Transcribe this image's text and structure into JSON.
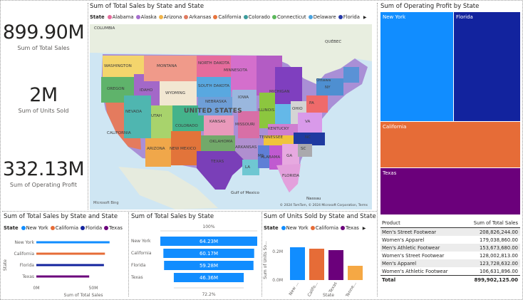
{
  "kpis": {
    "total_sales": {
      "value": "899.90M",
      "label": "Sum of Total Sales"
    },
    "units_sold": {
      "value": "2M",
      "label": "Sum of Units Sold"
    },
    "operating_profit": {
      "value": "332.13M",
      "label": "Sum of Operating Profit"
    }
  },
  "map_visual": {
    "title": "Sum of Total Sales by State and State",
    "legend_title": "State",
    "legend": [
      {
        "name": "Alabama",
        "color": "#e66c9c"
      },
      {
        "name": "Alaska",
        "color": "#a66fcf"
      },
      {
        "name": "Arizona",
        "color": "#f0b44a"
      },
      {
        "name": "Arkansas",
        "color": "#e07a5f"
      },
      {
        "name": "California",
        "color": "#e7743d"
      },
      {
        "name": "Colorado",
        "color": "#3b9b9b"
      },
      {
        "name": "Connecticut",
        "color": "#5cb85c"
      },
      {
        "name": "Delaware",
        "color": "#4aa3df"
      },
      {
        "name": "Florida",
        "color": "#2639a8"
      }
    ],
    "country_label": "UNITED STATES",
    "state_labels": [
      "WASHINGTON",
      "MONTANA",
      "NORTH DAKOTA",
      "MINNESOTA",
      "OREGON",
      "IDAHO",
      "SOUTH DAKOTA",
      "WYOMING",
      "IOWA",
      "MICHIGAN",
      "NEVADA",
      "NEBRASKA",
      "ILLINOIS",
      "OHIO",
      "PA",
      "NY",
      "UTAH",
      "COLORADO",
      "KANSAS",
      "MISSOURI",
      "KENTUCKY",
      "VA",
      "CALIFORNIA",
      "OKLAHOMA",
      "TENNESSEE",
      "NC",
      "ARIZONA",
      "NEW MEXICO",
      "ARKANSAS",
      "SC",
      "MS",
      "ALABAMA",
      "GA",
      "TEXAS",
      "LA",
      "FLORIDA",
      "COLUMBIA",
      "QUÉBEC",
      "Ottawa",
      "Gulf of Mexico",
      "Nassau"
    ],
    "attribution": "Microsoft Bing",
    "copyright": "© 2024 TomTom, © 2024 Microsoft Corporation, Terms"
  },
  "treemap": {
    "title": "Sum of Operating Profit by State",
    "cells": [
      {
        "name": "New York",
        "color": "#118dff"
      },
      {
        "name": "Florida",
        "color": "#12239e"
      },
      {
        "name": "California",
        "color": "#e66c37"
      },
      {
        "name": "Texas",
        "color": "#6b007b"
      }
    ]
  },
  "line_chart": {
    "title": "Sum of Total Sales by State and State",
    "legend_title": "State",
    "legend": [
      {
        "name": "New York",
        "color": "#118dff"
      },
      {
        "name": "California",
        "color": "#e66c37"
      },
      {
        "name": "Florida",
        "color": "#12239e"
      },
      {
        "name": "Texas",
        "color": "#6b007b"
      }
    ],
    "y_axis_title": "State",
    "x_axis_title": "Sum of Total Sales",
    "x_ticks": [
      "0M",
      "50M"
    ]
  },
  "funnel": {
    "title": "Sum of Total Sales by State",
    "top_label": "100%",
    "bottom_label": "72.2%"
  },
  "column_chart": {
    "title": "Sum of Units Sold by State and State",
    "legend_title": "State",
    "legend": [
      {
        "name": "New York",
        "color": "#118dff"
      },
      {
        "name": "California",
        "color": "#e66c37"
      },
      {
        "name": "Texas",
        "color": "#6b007b"
      }
    ],
    "y_axis_title": "Sum of Units So...",
    "x_axis_title": "State",
    "y_ticks": [
      "0.0M",
      "0.2M"
    ]
  },
  "table": {
    "col_product": "Product",
    "col_sales": "Sum of Total Sales",
    "rows": [
      {
        "product": "Men's Street Footwear",
        "sales": "208,826,244.00"
      },
      {
        "product": "Women's Apparel",
        "sales": "179,038,860.00"
      },
      {
        "product": "Men's Athletic Footwear",
        "sales": "153,673,680.00"
      },
      {
        "product": "Women's Street Footwear",
        "sales": "128,002,813.00"
      },
      {
        "product": "Men's Apparel",
        "sales": "123,728,632.00"
      },
      {
        "product": "Women's Athletic Footwear",
        "sales": "106,631,896.00"
      }
    ],
    "total_label": "Total",
    "total_value": "899,902,125.00"
  },
  "chart_data": [
    {
      "type": "treemap",
      "title": "Sum of Operating Profit by State",
      "categories": [
        "New York",
        "Florida",
        "California",
        "Texas"
      ],
      "values": [
        0.32,
        0.28,
        0.22,
        0.18
      ]
    },
    {
      "type": "bar",
      "title": "Sum of Total Sales by State and State",
      "categories": [
        "New York",
        "California",
        "Florida",
        "Texas"
      ],
      "values": [
        64.23,
        60.17,
        59.28,
        46.36
      ],
      "xlabel": "Sum of Total Sales",
      "ylabel": "State",
      "xlim": [
        0,
        70
      ]
    },
    {
      "type": "bar",
      "title": "Sum of Total Sales by State",
      "categories": [
        "New York",
        "California",
        "Florida",
        "Texas"
      ],
      "values": [
        64.23,
        60.17,
        59.28,
        46.36
      ],
      "labels": [
        "64.23M",
        "60.17M",
        "59.28M",
        "46.36M"
      ]
    },
    {
      "type": "bar",
      "title": "Sum of Units Sold by State and State",
      "categories": [
        "New ...",
        "Califo...",
        "Texas",
        "Tenne..."
      ],
      "values": [
        0.23,
        0.22,
        0.21,
        0.1
      ],
      "colors": [
        "#118dff",
        "#e66c37",
        "#6b007b",
        "#f5a844"
      ],
      "xlabel": "State",
      "ylabel": "Sum of Units So...",
      "ylim": [
        0,
        0.3
      ]
    }
  ]
}
